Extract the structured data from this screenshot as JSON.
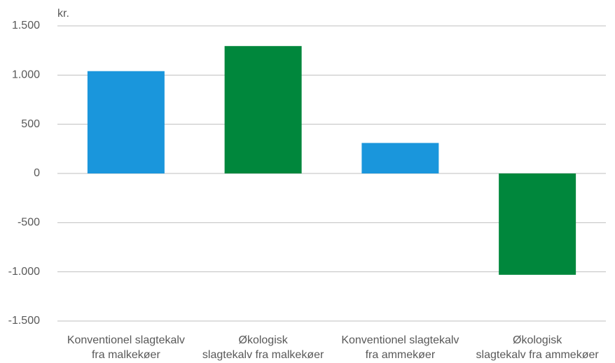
{
  "chart_data": {
    "type": "bar",
    "y_label": "kr.",
    "categories": [
      "Konventionel slagtekalv\nfra malkekøer",
      "Økologisk\nslagtekalv fra malkekøer",
      "Konventionel slagtekalv\nfra ammekøer",
      "Økologisk\nslagtekalv fra ammekøer"
    ],
    "values": [
      1040,
      1295,
      310,
      -1030
    ],
    "colors": [
      "#1a96dc",
      "#00873c",
      "#1a96dc",
      "#00873c"
    ],
    "ylim": [
      -1500,
      1500
    ],
    "yticks": [
      {
        "value": -1500,
        "label": "-1.500"
      },
      {
        "value": -1000,
        "label": "-1.000"
      },
      -500,
      0,
      500,
      {
        "value": 1000,
        "label": "1.000"
      },
      {
        "value": 1500,
        "label": "1.500"
      }
    ],
    "grid": true
  }
}
